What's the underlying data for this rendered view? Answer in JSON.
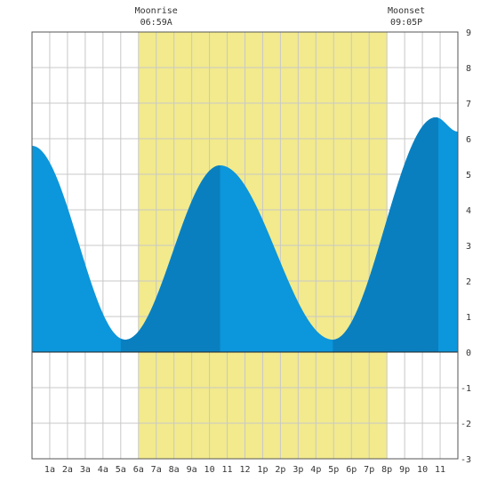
{
  "chart_data": {
    "type": "area",
    "title": "",
    "xlabel": "",
    "ylabel": "",
    "x_range": [
      0,
      24
    ],
    "ylim": [
      -3,
      9
    ],
    "y_ticks": [
      -3,
      -2,
      -1,
      0,
      1,
      2,
      3,
      4,
      5,
      6,
      7,
      8,
      9
    ],
    "x_tick_labels": [
      "1a",
      "2a",
      "3a",
      "4a",
      "5a",
      "6a",
      "7a",
      "8a",
      "9a",
      "10",
      "11",
      "12",
      "1p",
      "2p",
      "3p",
      "4p",
      "5p",
      "6p",
      "7p",
      "8p",
      "9p",
      "10",
      "11"
    ],
    "grid": true,
    "moon_window": {
      "start_hour": 6.0,
      "end_hour": 20.0,
      "color": "#f2ea8c"
    },
    "moon_events": [
      {
        "title": "Moonrise",
        "time": "06:59A",
        "hour": 7.0
      },
      {
        "title": "Moonset",
        "time": "09:05P",
        "hour": 21.1
      }
    ],
    "tide_extremes": [
      {
        "type": "high",
        "hour": 0.0,
        "value": 5.8
      },
      {
        "type": "low",
        "hour": 5.25,
        "value": 0.35
      },
      {
        "type": "high",
        "hour": 10.6,
        "value": 5.25
      },
      {
        "type": "low",
        "hour": 16.95,
        "value": 0.35
      },
      {
        "type": "high",
        "hour": 22.75,
        "value": 6.6
      },
      {
        "type": "end",
        "hour": 24.0,
        "value": 6.2
      }
    ],
    "shade_bands": [
      {
        "start_hour": 5.0,
        "end_hour": 10.6
      },
      {
        "start_hour": 16.95,
        "end_hour": 22.9
      }
    ],
    "colors": {
      "tide": "#0c96dc",
      "tide_dark": "#0a7fbf",
      "grid": "#c8c8c8",
      "border": "#555555"
    }
  }
}
